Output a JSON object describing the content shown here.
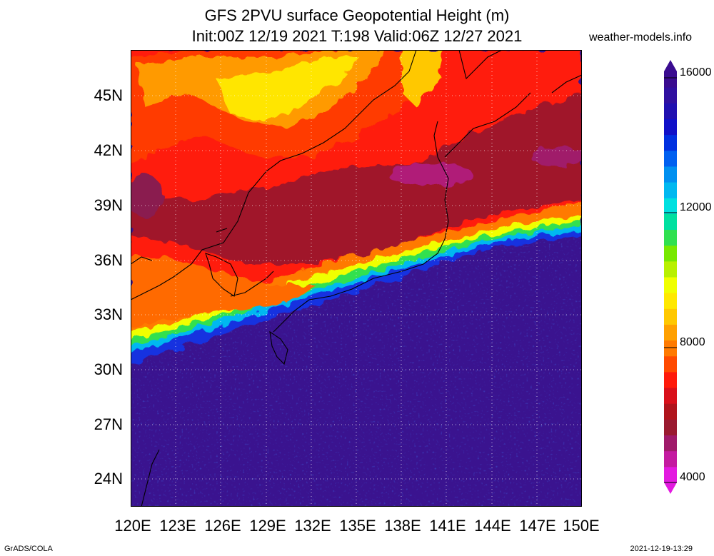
{
  "title": {
    "line1": "GFS 2PVU surface Geopotential Height (m)",
    "line2": "Init:00Z 12/19 2021 T:198 Valid:06Z 12/27 2021"
  },
  "site": "weather-models.info",
  "y_axis": {
    "ticks": [
      "45N",
      "42N",
      "39N",
      "36N",
      "33N",
      "30N",
      "27N",
      "24N"
    ]
  },
  "x_axis": {
    "ticks": [
      "120E",
      "123E",
      "126E",
      "129E",
      "132E",
      "135E",
      "138E",
      "141E",
      "144E",
      "147E",
      "150E"
    ]
  },
  "colorbar": {
    "labels": [
      "16000",
      "12000",
      "8000",
      "4000"
    ],
    "colors": [
      "#e31ae0",
      "#c41aa0",
      "#a01a6a",
      "#9a1a30",
      "#b0141c",
      "#d9101a",
      "#ff1a0a",
      "#ff4a00",
      "#ff7a00",
      "#ffa000",
      "#ffc800",
      "#ffe800",
      "#f0ff00",
      "#b8f000",
      "#78e800",
      "#30e050",
      "#00e0a0",
      "#00e0e0",
      "#00b8f0",
      "#0090f0",
      "#0060f0",
      "#0030e0",
      "#1010c8",
      "#2010b0",
      "#3010a0",
      "#3a0c90"
    ]
  },
  "colors": {
    "ocean_high": "#3a138f",
    "ocean_blue": "#0a2ee0",
    "jet_core": "#ffe600",
    "land_low": "#9a1a30",
    "mid": "#ff2a0a"
  },
  "footer": {
    "left": "GrADS/COLA",
    "right": "2021-12-19-13:29"
  }
}
